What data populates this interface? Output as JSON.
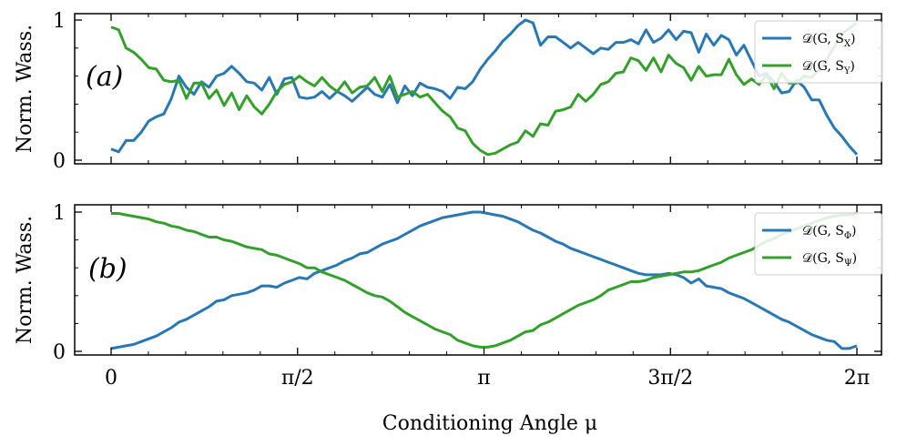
{
  "chart_data": [
    {
      "type": "line",
      "panel_label": "(a)",
      "ylabel": "Norm. Wass.",
      "xlabel": "",
      "xlim": [
        0,
        6.2832
      ],
      "ylim": [
        0,
        1
      ],
      "yticks": [
        {
          "value": 0,
          "label": "0"
        },
        {
          "value": 1,
          "label": "1"
        }
      ],
      "xtick_values": [
        0,
        1.5708,
        3.1416,
        4.7124,
        6.2832
      ],
      "xtick_labels": [],
      "grid": false,
      "legend": "top-right",
      "x": [
        0,
        0.0635,
        0.1269,
        0.1904,
        0.2539,
        0.3173,
        0.3808,
        0.4443,
        0.5077,
        0.5712,
        0.6347,
        0.6981,
        0.7616,
        0.8251,
        0.8885,
        0.952,
        1.0155,
        1.0789,
        1.1424,
        1.2059,
        1.2693,
        1.3328,
        1.3963,
        1.4597,
        1.5232,
        1.5867,
        1.6501,
        1.7136,
        1.7771,
        1.8405,
        1.904,
        1.9675,
        2.0309,
        2.0944,
        2.1579,
        2.2213,
        2.2848,
        2.3483,
        2.4117,
        2.4752,
        2.5387,
        2.6021,
        2.6656,
        2.7291,
        2.7925,
        2.856,
        2.9195,
        2.9829,
        3.0464,
        3.1099,
        3.1733,
        3.2368,
        3.3003,
        3.3637,
        3.4272,
        3.4907,
        3.5541,
        3.6176,
        3.6811,
        3.7445,
        3.808,
        3.8715,
        3.9349,
        3.9984,
        4.0619,
        4.1253,
        4.1888,
        4.2523,
        4.3157,
        4.3792,
        4.4427,
        4.5061,
        4.5696,
        4.6331,
        4.6965,
        4.76,
        4.8235,
        4.8869,
        4.9504,
        5.0139,
        5.0773,
        5.1408,
        5.2043,
        5.2677,
        5.3312,
        5.3947,
        5.4581,
        5.5216,
        5.5851,
        5.6485,
        5.712,
        5.7755,
        5.8389,
        5.9024,
        5.9659,
        6.0293,
        6.0928,
        6.1563,
        6.2197,
        6.2832
      ],
      "series": [
        {
          "name": "D(G, S_X)",
          "label_main": "𝒟(G, S",
          "label_sub": "X",
          "label_tail": ")",
          "color": "#2878b5",
          "values": [
            0.08,
            0.06,
            0.14,
            0.14,
            0.2,
            0.28,
            0.31,
            0.33,
            0.44,
            0.6,
            0.52,
            0.47,
            0.56,
            0.52,
            0.6,
            0.62,
            0.67,
            0.62,
            0.56,
            0.55,
            0.5,
            0.59,
            0.47,
            0.58,
            0.59,
            0.45,
            0.44,
            0.45,
            0.49,
            0.44,
            0.49,
            0.46,
            0.42,
            0.47,
            0.52,
            0.47,
            0.45,
            0.54,
            0.41,
            0.53,
            0.46,
            0.55,
            0.52,
            0.51,
            0.49,
            0.44,
            0.52,
            0.51,
            0.56,
            0.65,
            0.72,
            0.78,
            0.85,
            0.9,
            0.96,
            1.0,
            0.98,
            0.82,
            0.88,
            0.88,
            0.84,
            0.8,
            0.84,
            0.8,
            0.76,
            0.8,
            0.79,
            0.84,
            0.84,
            0.86,
            0.83,
            0.93,
            0.84,
            0.87,
            0.93,
            0.86,
            0.92,
            0.91,
            0.77,
            0.9,
            0.82,
            0.89,
            0.86,
            0.75,
            0.82,
            0.71,
            0.6,
            0.62,
            0.56,
            0.48,
            0.49,
            0.57,
            0.52,
            0.43,
            0.43,
            0.32,
            0.23,
            0.17,
            0.1,
            0.04
          ]
        },
        {
          "name": "D(G, S_Y)",
          "label_main": "𝒟(G, S",
          "label_sub": "Y",
          "label_tail": ")",
          "color": "#34a02c",
          "values": [
            0.95,
            0.93,
            0.8,
            0.77,
            0.72,
            0.66,
            0.65,
            0.57,
            0.56,
            0.57,
            0.44,
            0.55,
            0.55,
            0.44,
            0.5,
            0.39,
            0.48,
            0.36,
            0.46,
            0.38,
            0.33,
            0.4,
            0.49,
            0.54,
            0.56,
            0.6,
            0.56,
            0.53,
            0.59,
            0.53,
            0.49,
            0.56,
            0.48,
            0.52,
            0.53,
            0.59,
            0.49,
            0.6,
            0.45,
            0.47,
            0.49,
            0.45,
            0.47,
            0.41,
            0.35,
            0.31,
            0.23,
            0.21,
            0.12,
            0.07,
            0.04,
            0.05,
            0.08,
            0.11,
            0.13,
            0.21,
            0.17,
            0.26,
            0.25,
            0.35,
            0.36,
            0.38,
            0.47,
            0.42,
            0.47,
            0.54,
            0.56,
            0.62,
            0.63,
            0.73,
            0.71,
            0.64,
            0.73,
            0.63,
            0.75,
            0.69,
            0.66,
            0.57,
            0.67,
            0.6,
            0.61,
            0.61,
            0.72,
            0.61,
            0.54,
            0.58,
            0.54,
            0.61,
            0.51,
            0.62,
            0.55,
            0.55,
            0.6,
            0.59,
            0.65,
            0.72,
            0.81,
            0.9,
            0.94,
            0.98
          ]
        }
      ]
    },
    {
      "type": "line",
      "panel_label": "(b)",
      "ylabel": "Norm. Wass.",
      "xlabel": "Conditioning Angle μ",
      "xlim": [
        0,
        6.2832
      ],
      "ylim": [
        0,
        1
      ],
      "yticks": [
        {
          "value": 0,
          "label": "0"
        },
        {
          "value": 1,
          "label": "1"
        }
      ],
      "xtick_values": [
        0,
        1.5708,
        3.1416,
        4.7124,
        6.2832
      ],
      "xtick_labels": [
        "0",
        "π/2",
        "π",
        "3π/2",
        "2π"
      ],
      "grid": false,
      "legend": "top-right",
      "x": [
        0,
        0.0635,
        0.1269,
        0.1904,
        0.2539,
        0.3173,
        0.3808,
        0.4443,
        0.5077,
        0.5712,
        0.6347,
        0.6981,
        0.7616,
        0.8251,
        0.8885,
        0.952,
        1.0155,
        1.0789,
        1.1424,
        1.2059,
        1.2693,
        1.3328,
        1.3963,
        1.4597,
        1.5232,
        1.5867,
        1.6501,
        1.7136,
        1.7771,
        1.8405,
        1.904,
        1.9675,
        2.0309,
        2.0944,
        2.1579,
        2.2213,
        2.2848,
        2.3483,
        2.4117,
        2.4752,
        2.5387,
        2.6021,
        2.6656,
        2.7291,
        2.7925,
        2.856,
        2.9195,
        2.9829,
        3.0464,
        3.1099,
        3.1733,
        3.2368,
        3.3003,
        3.3637,
        3.4272,
        3.4907,
        3.5541,
        3.6176,
        3.6811,
        3.7445,
        3.808,
        3.8715,
        3.9349,
        3.9984,
        4.0619,
        4.1253,
        4.1888,
        4.2523,
        4.3157,
        4.3792,
        4.4427,
        4.5061,
        4.5696,
        4.6331,
        4.6965,
        4.76,
        4.8235,
        4.8869,
        4.9504,
        5.0139,
        5.0773,
        5.1408,
        5.2043,
        5.2677,
        5.3312,
        5.3947,
        5.4581,
        5.5216,
        5.5851,
        5.6485,
        5.712,
        5.7755,
        5.8389,
        5.9024,
        5.9659,
        6.0293,
        6.0928,
        6.1563,
        6.2197,
        6.2832
      ],
      "series": [
        {
          "name": "D(G, S_Phi)",
          "label_main": "𝒟(G, S",
          "label_sub": "Φ",
          "label_tail": ")",
          "color": "#2878b5",
          "values": [
            0.02,
            0.03,
            0.04,
            0.05,
            0.07,
            0.09,
            0.11,
            0.14,
            0.17,
            0.21,
            0.23,
            0.26,
            0.29,
            0.32,
            0.36,
            0.37,
            0.4,
            0.41,
            0.42,
            0.44,
            0.47,
            0.47,
            0.46,
            0.49,
            0.51,
            0.53,
            0.52,
            0.56,
            0.58,
            0.6,
            0.62,
            0.65,
            0.67,
            0.7,
            0.71,
            0.74,
            0.77,
            0.79,
            0.81,
            0.84,
            0.87,
            0.9,
            0.92,
            0.94,
            0.96,
            0.97,
            0.98,
            0.99,
            1.0,
            1.0,
            0.99,
            0.98,
            0.97,
            0.95,
            0.93,
            0.9,
            0.87,
            0.85,
            0.82,
            0.79,
            0.77,
            0.74,
            0.72,
            0.7,
            0.68,
            0.66,
            0.64,
            0.62,
            0.6,
            0.58,
            0.56,
            0.55,
            0.55,
            0.55,
            0.56,
            0.55,
            0.53,
            0.49,
            0.52,
            0.47,
            0.46,
            0.45,
            0.42,
            0.4,
            0.38,
            0.35,
            0.32,
            0.29,
            0.26,
            0.23,
            0.21,
            0.18,
            0.15,
            0.12,
            0.1,
            0.08,
            0.07,
            0.02,
            0.02,
            0.04
          ]
        },
        {
          "name": "D(G, S_Psi)",
          "label_main": "𝒟(G, S",
          "label_sub": "Ψ",
          "label_tail": ")",
          "color": "#34a02c",
          "values": [
            0.99,
            0.99,
            0.98,
            0.97,
            0.96,
            0.95,
            0.93,
            0.92,
            0.9,
            0.89,
            0.87,
            0.86,
            0.84,
            0.82,
            0.82,
            0.8,
            0.79,
            0.77,
            0.75,
            0.74,
            0.73,
            0.7,
            0.69,
            0.67,
            0.65,
            0.63,
            0.6,
            0.6,
            0.57,
            0.55,
            0.53,
            0.51,
            0.48,
            0.45,
            0.42,
            0.4,
            0.39,
            0.36,
            0.32,
            0.28,
            0.25,
            0.22,
            0.19,
            0.16,
            0.14,
            0.12,
            0.08,
            0.06,
            0.04,
            0.03,
            0.03,
            0.04,
            0.06,
            0.08,
            0.11,
            0.14,
            0.15,
            0.19,
            0.21,
            0.24,
            0.27,
            0.3,
            0.33,
            0.35,
            0.37,
            0.4,
            0.44,
            0.46,
            0.48,
            0.5,
            0.5,
            0.51,
            0.53,
            0.54,
            0.55,
            0.56,
            0.57,
            0.57,
            0.58,
            0.6,
            0.62,
            0.64,
            0.67,
            0.69,
            0.71,
            0.73,
            0.76,
            0.79,
            0.81,
            0.84,
            0.86,
            0.88,
            0.9,
            0.92,
            0.94,
            0.96,
            0.97,
            0.98,
            0.98,
            0.99
          ]
        }
      ]
    }
  ]
}
